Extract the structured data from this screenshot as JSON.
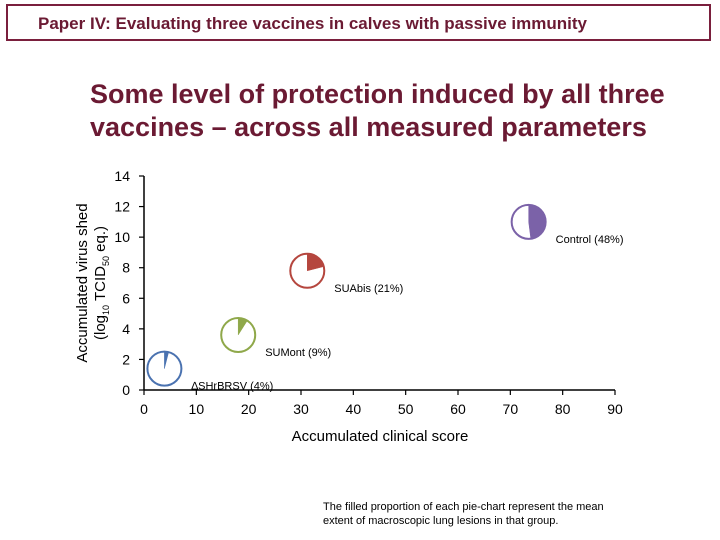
{
  "header": {
    "title": "Paper IV: Evaluating three vaccines in calves with passive immunity"
  },
  "headline": {
    "line1": "Some level of protection induced by all three",
    "line2": "vaccines – across all measured parameters"
  },
  "footnote": {
    "line1": "The filled proportion of each pie-chart represent the mean",
    "line2": "extent of macroscopic lung lesions in that group."
  },
  "chart_data": {
    "type": "scatter",
    "xlabel": "Accumulated clinical score",
    "ylabel_line1": "Accumulated virus shed",
    "ylabel_line2_pre": "(log",
    "ylabel_line2_sub1": "10",
    "ylabel_line2_mid": " TCID",
    "ylabel_line2_sub2": "50",
    "ylabel_line2_post": " eq.)",
    "xlim": [
      0,
      90
    ],
    "ylim": [
      0,
      14
    ],
    "xticks": [
      0,
      10,
      20,
      30,
      40,
      50,
      60,
      70,
      80,
      90
    ],
    "yticks": [
      0,
      2,
      4,
      6,
      8,
      10,
      12,
      14
    ],
    "points": [
      {
        "label": "∆SHrBRSV (4%)",
        "x": 3.9,
        "y": 1.4,
        "lesion_fraction": 0.04,
        "color": "#4a72b0"
      },
      {
        "label": "SUMont (9%)",
        "x": 18.0,
        "y": 3.6,
        "lesion_fraction": 0.09,
        "color": "#8fa84a"
      },
      {
        "label": "SUAbis (21%)",
        "x": 31.2,
        "y": 7.8,
        "lesion_fraction": 0.21,
        "color": "#b5463e"
      },
      {
        "label": "Control (48%)",
        "x": 73.5,
        "y": 11.0,
        "lesion_fraction": 0.48,
        "color": "#7b62a8"
      }
    ]
  }
}
